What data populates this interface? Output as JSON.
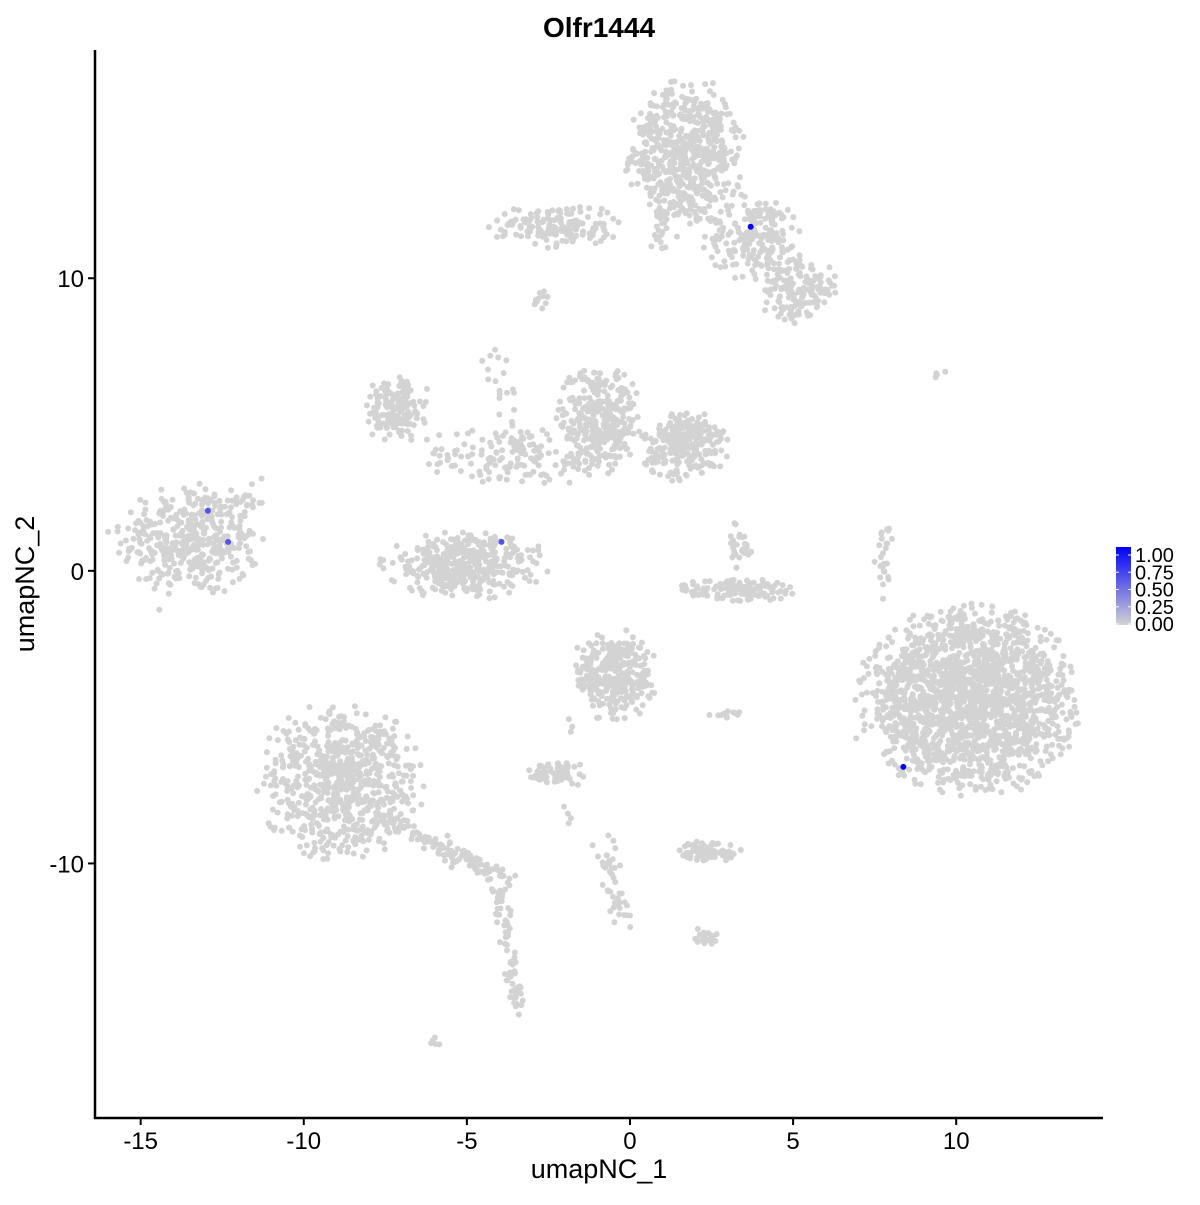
{
  "chart_data": {
    "type": "scatter",
    "title": "Olfr1444",
    "xlabel": "umapNC_1",
    "ylabel": "umapNC_2",
    "xlim": [
      -16.4,
      14.5
    ],
    "ylim": [
      -18.7,
      17.8
    ],
    "x_ticks": [
      -15,
      -10,
      -5,
      0,
      5,
      10
    ],
    "y_ticks": [
      -10,
      0,
      10
    ],
    "grid": false,
    "legend": {
      "position": "right",
      "type": "colorbar",
      "ticks": [
        "0.00",
        "0.25",
        "0.50",
        "0.75",
        "1.00"
      ],
      "low_color": "#d3d3d3",
      "high_color": "#0000ff"
    },
    "background_cells_value": 0,
    "background_clusters": [
      {
        "cx": -13.45,
        "cy": 1.06,
        "sx": 1.05,
        "sy": 0.95,
        "n": 420
      },
      {
        "cx": 1.7,
        "cy": 14.2,
        "sx": 0.85,
        "sy": 1.2,
        "n": 600
      },
      {
        "cx": 3.9,
        "cy": 11.4,
        "sx": 0.8,
        "sy": 0.7,
        "n": 200
      },
      {
        "cx": 5.2,
        "cy": 9.6,
        "sx": 0.55,
        "sy": 0.55,
        "n": 150
      },
      {
        "cx": -2.3,
        "cy": 11.8,
        "sx": 1.0,
        "sy": 0.35,
        "n": 160
      },
      {
        "cx": -0.95,
        "cy": 5.2,
        "sx": 0.6,
        "sy": 0.9,
        "n": 320
      },
      {
        "cx": 1.7,
        "cy": 4.3,
        "sx": 0.65,
        "sy": 0.6,
        "n": 260
      },
      {
        "cx": -3.5,
        "cy": 3.9,
        "sx": 1.5,
        "sy": 0.5,
        "n": 140
      },
      {
        "cx": -7.2,
        "cy": 5.5,
        "sx": 0.45,
        "sy": 0.55,
        "n": 160
      },
      {
        "cx": -5.05,
        "cy": 0.2,
        "sx": 1.2,
        "sy": 0.55,
        "n": 380
      },
      {
        "cx": 10.4,
        "cy": -4.4,
        "sx": 1.6,
        "sy": 1.5,
        "n": 1900
      },
      {
        "cx": 3.2,
        "cy": -0.65,
        "sx": 0.85,
        "sy": 0.22,
        "n": 120
      },
      {
        "cx": 3.4,
        "cy": 1.0,
        "sx": 0.18,
        "sy": 0.45,
        "n": 30
      },
      {
        "cx": -0.45,
        "cy": -3.6,
        "sx": 0.6,
        "sy": 0.75,
        "n": 320
      },
      {
        "cx": -8.9,
        "cy": -7.2,
        "sx": 1.2,
        "sy": 1.25,
        "n": 720
      },
      {
        "cx": -2.35,
        "cy": -6.9,
        "sx": 0.35,
        "sy": 0.22,
        "n": 60
      },
      {
        "cx": 2.45,
        "cy": -9.6,
        "sx": 0.45,
        "sy": 0.18,
        "n": 80
      },
      {
        "cx": 2.3,
        "cy": -12.5,
        "sx": 0.22,
        "sy": 0.15,
        "n": 25
      },
      {
        "cx": 7.8,
        "cy": 0.3,
        "sx": 0.15,
        "sy": 0.8,
        "n": 25
      },
      {
        "cx": 3.0,
        "cy": -4.9,
        "sx": 0.3,
        "sy": 0.06,
        "n": 12
      },
      {
        "cx": -6.0,
        "cy": -16.1,
        "sx": 0.1,
        "sy": 0.1,
        "n": 5
      },
      {
        "cx": 9.5,
        "cy": 6.7,
        "sx": 0.2,
        "sy": 0.1,
        "n": 4
      }
    ],
    "background_streams": [
      {
        "from": [
          -7.5,
          -8.5
        ],
        "to": [
          -3.8,
          -10.5
        ],
        "n": 120
      },
      {
        "from": [
          -4.0,
          -10.8
        ],
        "to": [
          -3.4,
          -15.3
        ],
        "n": 70
      },
      {
        "from": [
          -0.8,
          -9.3
        ],
        "to": [
          -0.1,
          -12.3
        ],
        "n": 45
      },
      {
        "from": [
          -4.3,
          7.6
        ],
        "to": [
          -3.3,
          4.3
        ],
        "n": 25
      },
      {
        "from": [
          0.9,
          10.9
        ],
        "to": [
          1.0,
          13.0
        ],
        "n": 30
      },
      {
        "from": [
          -2.8,
          9.0
        ],
        "to": [
          -2.6,
          9.8
        ],
        "n": 10
      },
      {
        "from": [
          -1.7,
          -5.2
        ],
        "to": [
          -1.8,
          -8.5
        ],
        "n": 15
      },
      {
        "from": [
          -12.0,
          2.1
        ],
        "to": [
          -11.4,
          2.8
        ],
        "n": 10
      }
    ],
    "expressing_cells": [
      {
        "x": 3.7,
        "y": 11.76,
        "value": 1.0
      },
      {
        "x": 8.38,
        "y": -6.7,
        "value": 1.0
      },
      {
        "x": -12.94,
        "y": 2.05,
        "value": 0.6
      },
      {
        "x": -12.32,
        "y": 0.99,
        "value": 0.6
      },
      {
        "x": -3.94,
        "y": 0.99,
        "value": 0.6
      }
    ]
  }
}
